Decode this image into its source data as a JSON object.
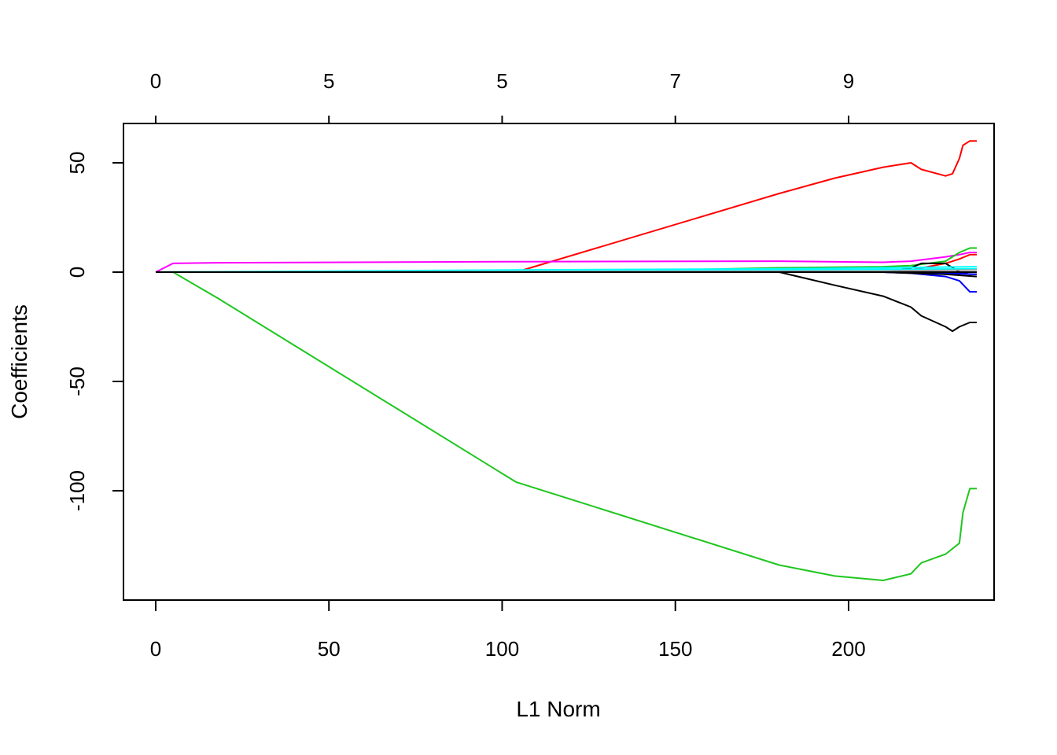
{
  "chart_data": {
    "type": "line",
    "title": "",
    "xlabel": "L1 Norm",
    "ylabel": "Coefficients",
    "xlim": [
      -9.3,
      242
    ],
    "ylim": [
      -150,
      68
    ],
    "grid": false,
    "legend": "none",
    "x_ticks": [
      0,
      50,
      100,
      150,
      200
    ],
    "x_tick_labels": [
      "0",
      "50",
      "100",
      "150",
      "200"
    ],
    "y_ticks": [
      50,
      0,
      -50,
      -100
    ],
    "y_tick_labels": [
      "50",
      "0",
      "-50",
      "-100"
    ],
    "top_ticks": [
      0,
      50,
      100,
      150,
      200
    ],
    "top_tick_labels": [
      "0",
      "5",
      "5",
      "7",
      "9"
    ],
    "series": [
      {
        "color": "#1fc61f",
        "x": [
          0,
          5,
          18,
          104,
          180,
          196,
          210,
          218,
          221,
          228,
          232,
          233,
          235,
          237
        ],
        "y": [
          0,
          0,
          -12,
          -96,
          -134,
          -139,
          -141,
          -138,
          -133,
          -129,
          -124,
          -110,
          -99,
          -99
        ]
      },
      {
        "color": "#ff0000",
        "x": [
          0,
          104,
          180,
          196,
          210,
          218,
          221,
          228,
          230,
          232,
          233,
          235,
          237
        ],
        "y": [
          0,
          0,
          36,
          43,
          48,
          50,
          47,
          44,
          45,
          52,
          58,
          60,
          60
        ]
      },
      {
        "color": "#ff00ff",
        "x": [
          0,
          5,
          18,
          104,
          180,
          210,
          218,
          228,
          232,
          235,
          237
        ],
        "y": [
          0,
          4,
          4.3,
          4.8,
          5,
          4.5,
          5,
          7,
          8,
          9,
          9
        ]
      },
      {
        "color": "#000000",
        "x": [
          0,
          180,
          196,
          210,
          218,
          221,
          228,
          230,
          232,
          235,
          237
        ],
        "y": [
          0,
          0,
          -6,
          -11,
          -16,
          -20,
          -25,
          -27,
          -25,
          -23,
          -23
        ]
      },
      {
        "color": "#1fc61f",
        "x": [
          0,
          150,
          180,
          210,
          218,
          228,
          232,
          235,
          237
        ],
        "y": [
          0,
          1,
          2,
          2.5,
          3,
          5,
          9,
          11,
          11
        ]
      },
      {
        "color": "#ff0000",
        "x": [
          0,
          210,
          218,
          228,
          232,
          235,
          237
        ],
        "y": [
          0,
          0,
          1,
          4,
          6,
          8,
          8
        ]
      },
      {
        "color": "#000000",
        "x": [
          0,
          210,
          218,
          221,
          228,
          232,
          235,
          237
        ],
        "y": [
          0,
          0,
          2,
          4,
          4,
          0,
          -1,
          -1
        ]
      },
      {
        "color": "#0000ff",
        "x": [
          0,
          210,
          218,
          228,
          232,
          235,
          237
        ],
        "y": [
          0,
          0,
          -0.5,
          -2,
          -4,
          -9,
          -9
        ]
      },
      {
        "color": "#00ffff",
        "x": [
          0,
          104,
          180,
          210,
          237
        ],
        "y": [
          0,
          1,
          1.5,
          2,
          2.5
        ]
      },
      {
        "color": "#00ffff",
        "x": [
          0,
          180,
          237
        ],
        "y": [
          0,
          1,
          1.5
        ]
      },
      {
        "color": "#9e9e9e",
        "x": [
          0,
          210,
          237
        ],
        "y": [
          0,
          0.5,
          1
        ]
      },
      {
        "color": "#0000ff",
        "x": [
          0,
          210,
          228,
          237
        ],
        "y": [
          0,
          0,
          -0.5,
          -1
        ]
      },
      {
        "color": "#000000",
        "x": [
          0,
          210,
          228,
          237
        ],
        "y": [
          0,
          0,
          -1,
          -2
        ]
      },
      {
        "color": "#000000",
        "x": [
          0,
          237
        ],
        "y": [
          0,
          0
        ]
      }
    ]
  }
}
